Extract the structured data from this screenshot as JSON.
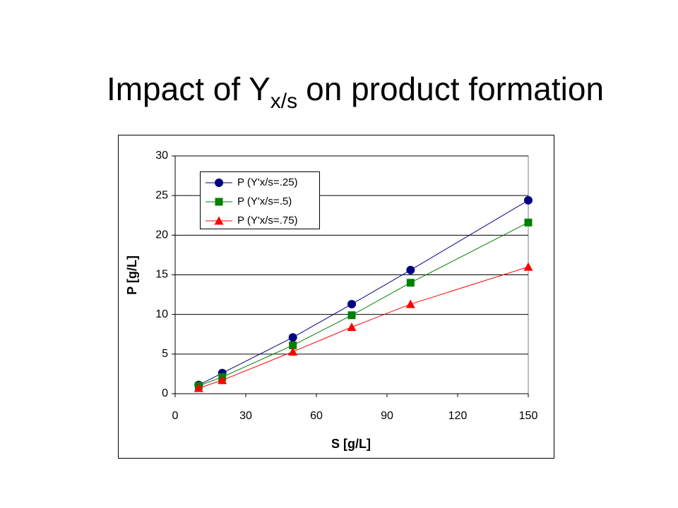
{
  "title": {
    "main": "Impact of Y",
    "subscript": "x/s",
    "rest": "on product formation"
  },
  "chart_data": {
    "type": "line",
    "x_label": "S [g/L]",
    "y_label": "P [g/L]",
    "x": [
      10,
      20,
      50,
      75,
      100,
      150
    ],
    "series": [
      {
        "name": "P (Y'x/s=.25)",
        "color": "#000080",
        "marker": "circle",
        "values": [
          1.1,
          2.6,
          7.1,
          11.3,
          15.6,
          24.4
        ]
      },
      {
        "name": "P (Y'x/s=.5)",
        "color": "#008000",
        "marker": "square",
        "values": [
          1.0,
          2.1,
          6.1,
          9.9,
          14.0,
          21.6
        ]
      },
      {
        "name": "P (Y'x/s=.75)",
        "color": "#ff0000",
        "marker": "triangle",
        "values": [
          0.7,
          1.7,
          5.3,
          8.4,
          11.3,
          16.0
        ]
      }
    ],
    "xlim": [
      0,
      150
    ],
    "xticks": [
      0,
      30,
      60,
      90,
      120,
      150
    ],
    "ylim": [
      0,
      30
    ],
    "yticks": [
      0,
      5,
      10,
      15,
      20,
      25,
      30
    ],
    "grid": true,
    "legend": "upper-left"
  }
}
